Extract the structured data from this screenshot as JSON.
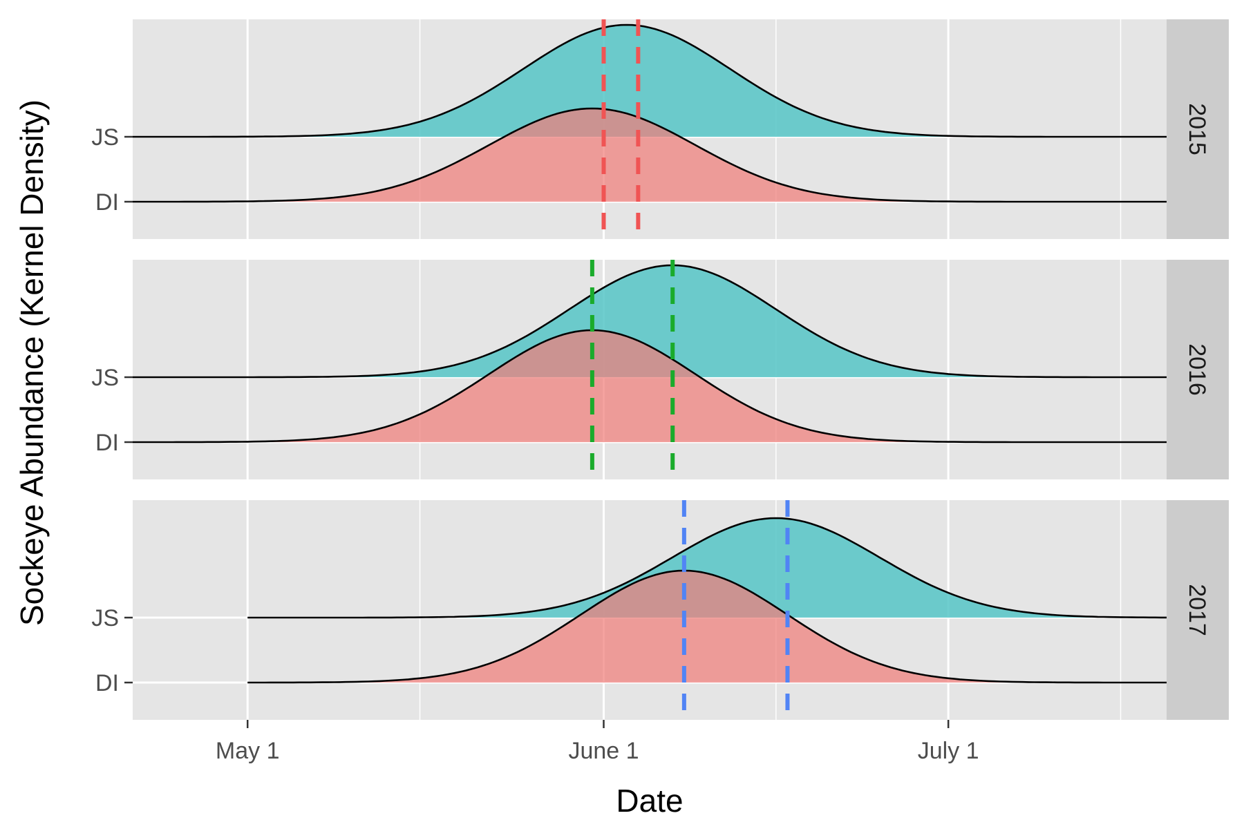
{
  "chart_data": {
    "type": "area",
    "subtype": "ridgeline-density",
    "xlabel": "Date",
    "ylabel": "Sockeye Abundance (Kernel Density)",
    "x_ticks": [
      "May 1",
      "June 1",
      "July 1"
    ],
    "x_tick_dates": [
      "2000-05-01",
      "2000-06-01",
      "2000-07-01"
    ],
    "xlim": [
      "2000-04-21",
      "2000-07-20"
    ],
    "y_categories": [
      "DI",
      "JS"
    ],
    "panel_layout": "vertical facets with strip labels on the right",
    "grid": true,
    "legend": "none",
    "colors": {
      "panel_bg": "#e5e5e5",
      "strip_bg": "#cccccc",
      "grid_line": "#ffffff",
      "JS_fill": "#4fc3c4",
      "DI_fill": "#f07e7a",
      "year_2015": "#f05454",
      "year_2016": "#1aab2b",
      "year_2017": "#5184f5",
      "outline": "#000000"
    },
    "panels": [
      {
        "year": "2015",
        "line_color": "#f05454",
        "series": [
          {
            "name": "JS",
            "peak_date": "2000-06-03",
            "peak_height": 1.8,
            "x_start": "2000-04-21",
            "x_end": "2000-07-20"
          },
          {
            "name": "DI",
            "peak_date": "2000-05-31",
            "peak_height": 1.5,
            "x_start": "2000-04-21",
            "x_end": "2000-07-20"
          }
        ],
        "dashed_lines": [
          "2000-06-01",
          "2000-06-04"
        ]
      },
      {
        "year": "2016",
        "line_color": "#1aab2b",
        "series": [
          {
            "name": "JS",
            "peak_date": "2000-06-07",
            "peak_height": 1.8,
            "x_start": "2000-04-21",
            "x_end": "2000-07-20"
          },
          {
            "name": "DI",
            "peak_date": "2000-05-31",
            "peak_height": 1.8,
            "x_start": "2000-04-21",
            "x_end": "2000-07-20"
          }
        ],
        "dashed_lines": [
          "2000-05-31",
          "2000-06-07"
        ]
      },
      {
        "year": "2017",
        "line_color": "#5184f5",
        "series": [
          {
            "name": "JS",
            "peak_date": "2000-06-16",
            "peak_height": 1.6,
            "x_start": "2000-05-01",
            "x_end": "2000-07-20"
          },
          {
            "name": "DI",
            "peak_date": "2000-06-08",
            "peak_height": 1.8,
            "x_start": "2000-05-01",
            "x_end": "2000-07-20"
          }
        ],
        "dashed_lines": [
          "2000-06-08",
          "2000-06-17"
        ]
      }
    ]
  }
}
